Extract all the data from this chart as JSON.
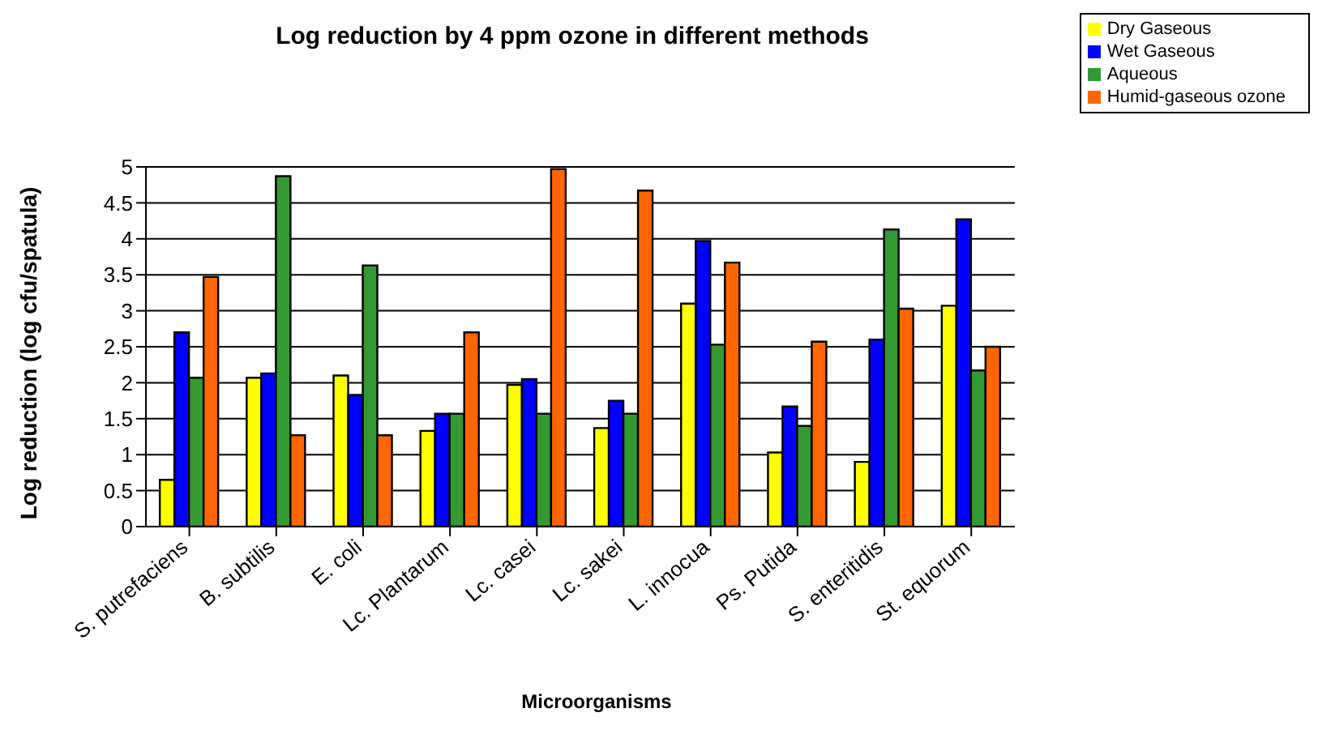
{
  "chart_data": {
    "type": "bar",
    "title": "Log reduction by 4 ppm ozone in different methods",
    "xlabel": "Microorganisms",
    "ylabel": "Log reduction (log cfu/spatula)",
    "categories": [
      "S. putrefaciens",
      "B. subtilis",
      "E. coli",
      "Lc. Plantarum",
      "Lc. casei",
      "Lc. sakei",
      "L. innocua",
      "Ps. Putida",
      "S. enteritidis",
      "St. equorum"
    ],
    "series": [
      {
        "name": "Dry Gaseous",
        "color": "#ffff00",
        "values": [
          0.65,
          2.07,
          2.1,
          1.33,
          1.97,
          1.37,
          3.1,
          1.03,
          0.9,
          3.07
        ]
      },
      {
        "name": "Wet Gaseous",
        "color": "#0000ff",
        "values": [
          2.7,
          2.13,
          1.83,
          1.57,
          2.05,
          1.75,
          3.97,
          1.67,
          2.6,
          4.27
        ]
      },
      {
        "name": "Aqueous",
        "color": "#339933",
        "values": [
          2.07,
          4.87,
          3.63,
          1.57,
          1.57,
          1.57,
          2.53,
          1.4,
          4.13,
          2.17
        ]
      },
      {
        "name": "Humid-gaseous ozone",
        "color": "#ff6600",
        "values": [
          3.47,
          1.27,
          1.27,
          2.7,
          4.97,
          4.67,
          3.67,
          2.57,
          3.03,
          2.5
        ]
      }
    ],
    "ylim": [
      0,
      5
    ],
    "yticks": [
      0,
      0.5,
      1,
      1.5,
      2,
      2.5,
      3,
      3.5,
      4,
      4.5,
      5
    ],
    "grid": "y",
    "legend": "top right"
  }
}
